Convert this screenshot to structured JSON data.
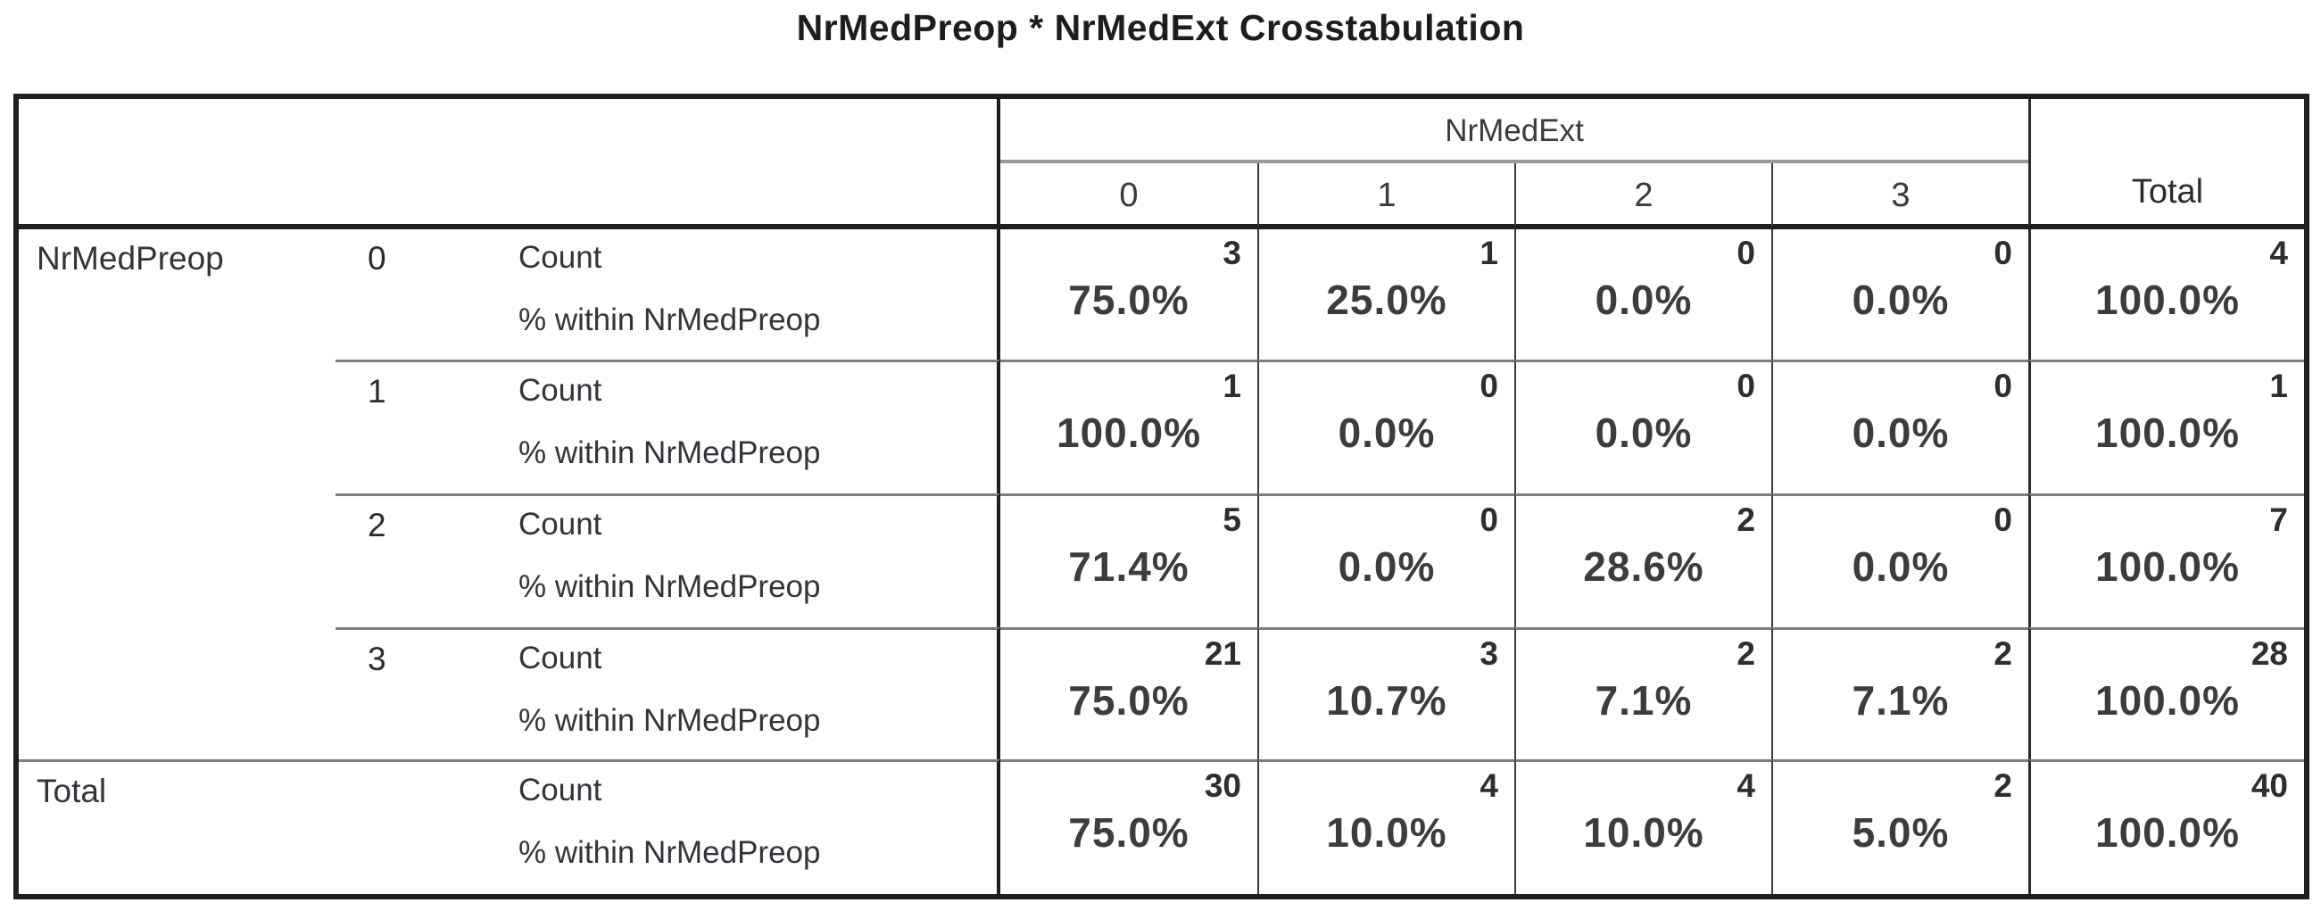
{
  "title": "NrMedPreop * NrMedExt Crosstabulation",
  "table": {
    "row_dimension": "NrMedPreop",
    "col_dimension": "NrMedExt",
    "col_categories": [
      "0",
      "1",
      "2",
      "3"
    ],
    "total_col_label": "Total",
    "total_row_label": "Total",
    "measure_labels": [
      "Count",
      "% within NrMedPreop"
    ],
    "rows": [
      {
        "dim_label": "NrMedPreop",
        "value": "0",
        "count": [
          "3",
          "1",
          "0",
          "0",
          "4"
        ],
        "percent": [
          "75.0%",
          "25.0%",
          "0.0%",
          "0.0%",
          "100.0%"
        ]
      },
      {
        "dim_label": "",
        "value": "1",
        "count": [
          "1",
          "0",
          "0",
          "0",
          "1"
        ],
        "percent": [
          "100.0%",
          "0.0%",
          "0.0%",
          "0.0%",
          "100.0%"
        ]
      },
      {
        "dim_label": "",
        "value": "2",
        "count": [
          "5",
          "0",
          "2",
          "0",
          "7"
        ],
        "percent": [
          "71.4%",
          "0.0%",
          "28.6%",
          "0.0%",
          "100.0%"
        ]
      },
      {
        "dim_label": "",
        "value": "3",
        "count": [
          "21",
          "3",
          "2",
          "2",
          "28"
        ],
        "percent": [
          "75.0%",
          "10.7%",
          "7.1%",
          "7.1%",
          "100.0%"
        ]
      },
      {
        "dim_label": "Total",
        "value": "",
        "count": [
          "30",
          "4",
          "4",
          "2",
          "40"
        ],
        "percent": [
          "75.0%",
          "10.0%",
          "10.0%",
          "5.0%",
          "100.0%"
        ]
      }
    ],
    "line_colors": {
      "heavy_rule": "#1f1f1f",
      "light_rule": "#9a9a9a",
      "separator": "#7d7d7d"
    }
  }
}
